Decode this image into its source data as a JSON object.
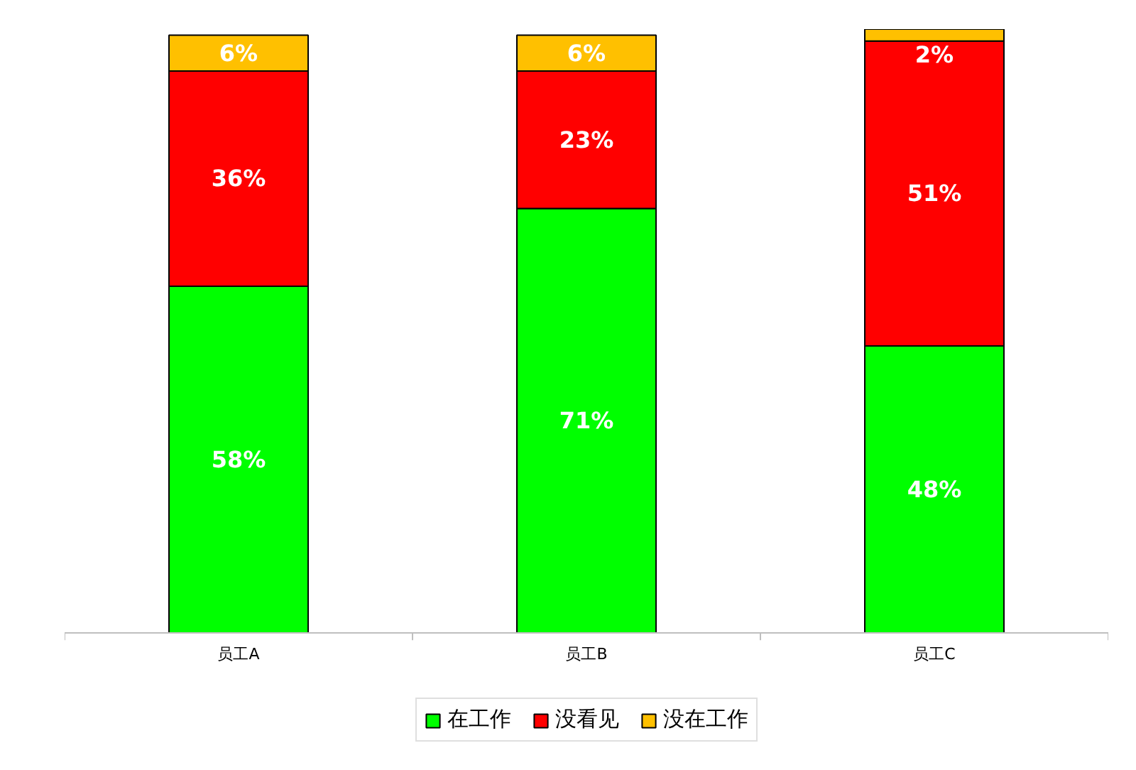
{
  "chart_data": {
    "type": "bar",
    "stacked": true,
    "legend": "bottom",
    "categories": [
      "员工A",
      "员工B",
      "员工C"
    ],
    "series": [
      {
        "name": "在工作",
        "color": "#00ff00",
        "values": [
          58,
          71,
          48
        ],
        "value_labels": [
          "58%",
          "71%",
          "48%"
        ]
      },
      {
        "name": "没看见",
        "color": "#ff0000",
        "values": [
          36,
          23,
          51
        ],
        "value_labels": [
          "36%",
          "23%",
          "51%"
        ]
      },
      {
        "name": "没在工作",
        "color": "#ffc000",
        "values": [
          6,
          6,
          2
        ],
        "value_labels": [
          "6%",
          "6%",
          "2%"
        ]
      }
    ]
  }
}
